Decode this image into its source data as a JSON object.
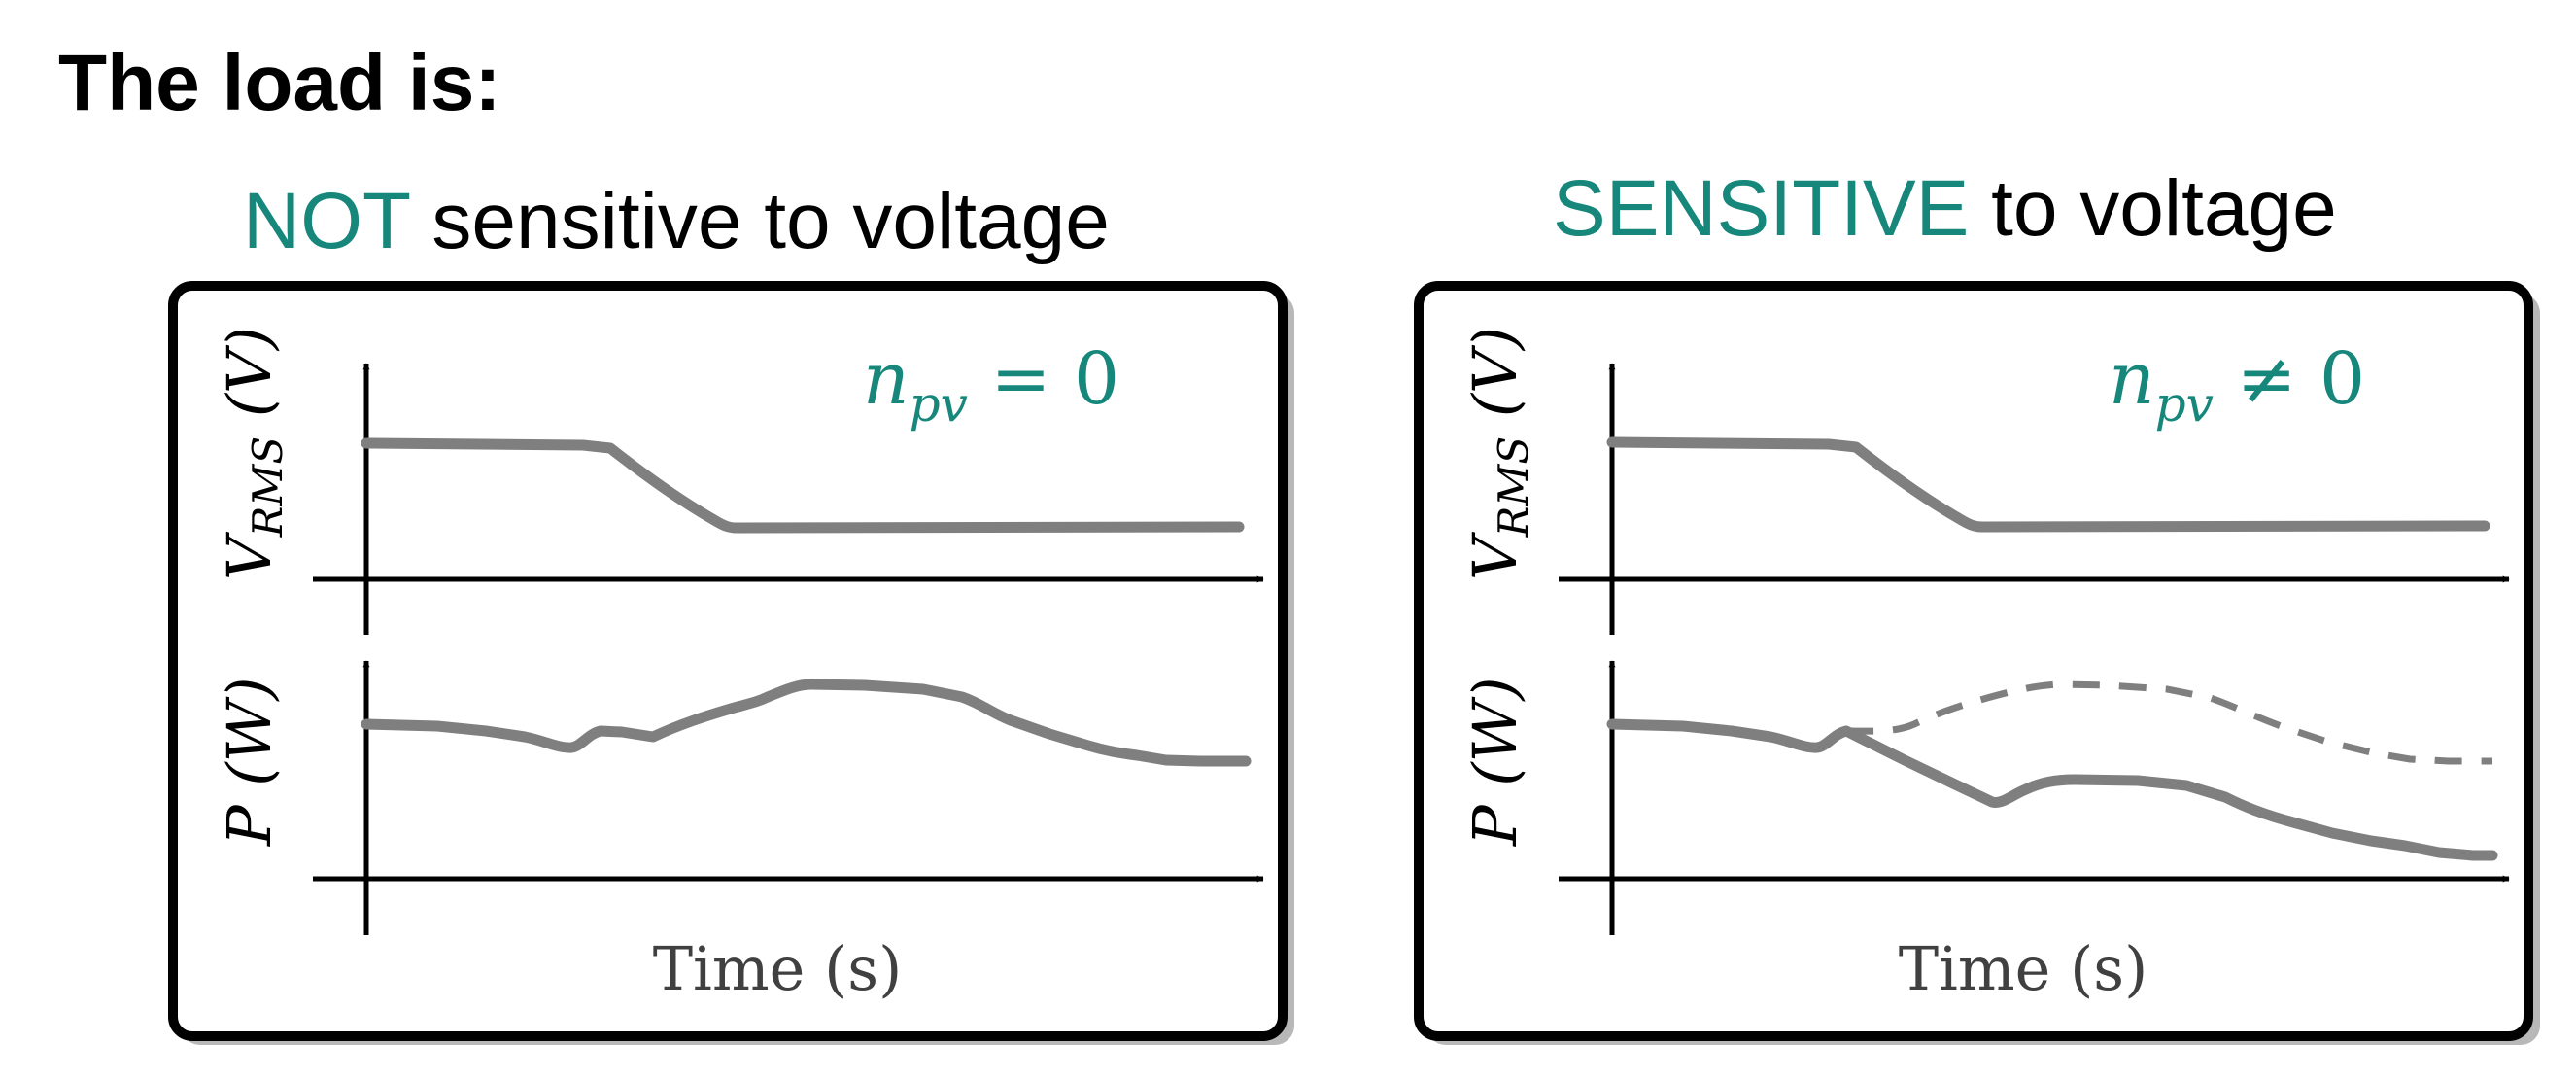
{
  "colors": {
    "accent": "#16877a",
    "curve": "#7f7f7f",
    "axis": "#000000",
    "label": "#404040",
    "panel_border": "#000000",
    "panel_shadow": "#9a9a9a"
  },
  "slide": {
    "heading": "The load is:"
  },
  "panels": [
    {
      "title_accent": "NOT",
      "title_rest": " sensitive to voltage",
      "annotation": {
        "symbol": "n",
        "subscript": "pv",
        "relation": " = 0"
      },
      "top_plot": {
        "ylabel_main": "V",
        "ylabel_sub": "RMS",
        "ylabel_unit": " (V)"
      },
      "bottom_plot": {
        "ylabel_main": "P",
        "ylabel_unit": " (W)",
        "has_dashed_reference": false
      },
      "xlabel": "Time (s)"
    },
    {
      "title_accent": "SENSITIVE",
      "title_rest": " to voltage",
      "annotation": {
        "symbol": "n",
        "subscript": "pv",
        "relation": " ≠ 0"
      },
      "top_plot": {
        "ylabel_main": "V",
        "ylabel_sub": "RMS",
        "ylabel_unit": " (V)"
      },
      "bottom_plot": {
        "ylabel_main": "P",
        "ylabel_unit": " (W)",
        "has_dashed_reference": true
      },
      "xlabel": "Time (s)"
    }
  ]
}
